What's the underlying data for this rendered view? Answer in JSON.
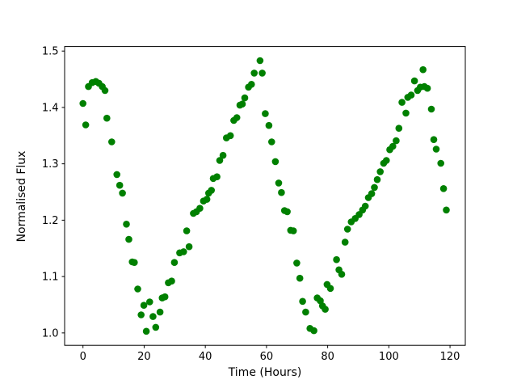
{
  "chart_data": {
    "type": "scatter",
    "title": "",
    "xlabel": "Time (Hours)",
    "ylabel": "Normalised Flux",
    "xlim": [
      -6,
      125
    ],
    "ylim": [
      0.978,
      1.508
    ],
    "x_ticks": [
      0,
      20,
      40,
      60,
      80,
      100,
      120
    ],
    "x_tick_labels": [
      "0",
      "20",
      "40",
      "60",
      "80",
      "100",
      "120"
    ],
    "y_ticks": [
      1.0,
      1.1,
      1.2,
      1.3,
      1.4,
      1.5
    ],
    "y_tick_labels": [
      "1.0",
      "1.1",
      "1.2",
      "1.3",
      "1.4",
      "1.5"
    ],
    "grid": false,
    "legend_position": "none",
    "marker_color": "#008000",
    "marker_shape": "circle",
    "marker_radius_px": 4.3,
    "series_name": "normalised-flux-light-curve",
    "points": [
      [
        0.0,
        1.407
      ],
      [
        0.9,
        1.369
      ],
      [
        1.8,
        1.437
      ],
      [
        3.0,
        1.444
      ],
      [
        4.2,
        1.446
      ],
      [
        5.2,
        1.443
      ],
      [
        6.3,
        1.437
      ],
      [
        7.2,
        1.43
      ],
      [
        7.8,
        1.381
      ],
      [
        9.4,
        1.339
      ],
      [
        11.1,
        1.281
      ],
      [
        12.0,
        1.262
      ],
      [
        12.9,
        1.248
      ],
      [
        14.2,
        1.193
      ],
      [
        15.0,
        1.166
      ],
      [
        16.1,
        1.126
      ],
      [
        16.8,
        1.125
      ],
      [
        17.9,
        1.078
      ],
      [
        19.0,
        1.032
      ],
      [
        19.9,
        1.049
      ],
      [
        20.7,
        1.003
      ],
      [
        21.8,
        1.055
      ],
      [
        22.9,
        1.029
      ],
      [
        23.8,
        1.01
      ],
      [
        25.2,
        1.037
      ],
      [
        25.9,
        1.062
      ],
      [
        26.8,
        1.064
      ],
      [
        27.9,
        1.089
      ],
      [
        29.0,
        1.092
      ],
      [
        29.9,
        1.125
      ],
      [
        31.6,
        1.142
      ],
      [
        32.9,
        1.144
      ],
      [
        33.9,
        1.181
      ],
      [
        34.7,
        1.153
      ],
      [
        36.1,
        1.212
      ],
      [
        37.1,
        1.215
      ],
      [
        38.2,
        1.221
      ],
      [
        39.4,
        1.234
      ],
      [
        40.5,
        1.237
      ],
      [
        41.1,
        1.248
      ],
      [
        42.0,
        1.253
      ],
      [
        42.6,
        1.274
      ],
      [
        43.8,
        1.277
      ],
      [
        44.7,
        1.306
      ],
      [
        45.8,
        1.315
      ],
      [
        46.9,
        1.346
      ],
      [
        48.2,
        1.35
      ],
      [
        49.3,
        1.377
      ],
      [
        50.3,
        1.382
      ],
      [
        51.3,
        1.404
      ],
      [
        52.1,
        1.406
      ],
      [
        52.9,
        1.417
      ],
      [
        54.1,
        1.436
      ],
      [
        55.1,
        1.441
      ],
      [
        56.0,
        1.461
      ],
      [
        57.9,
        1.483
      ],
      [
        58.6,
        1.461
      ],
      [
        59.6,
        1.389
      ],
      [
        60.8,
        1.368
      ],
      [
        61.7,
        1.339
      ],
      [
        62.9,
        1.304
      ],
      [
        64.0,
        1.266
      ],
      [
        64.9,
        1.249
      ],
      [
        65.9,
        1.217
      ],
      [
        66.8,
        1.215
      ],
      [
        67.9,
        1.182
      ],
      [
        68.8,
        1.181
      ],
      [
        69.9,
        1.124
      ],
      [
        70.9,
        1.097
      ],
      [
        71.8,
        1.056
      ],
      [
        72.8,
        1.037
      ],
      [
        74.2,
        1.008
      ],
      [
        75.5,
        1.004
      ],
      [
        76.6,
        1.062
      ],
      [
        77.6,
        1.057
      ],
      [
        78.3,
        1.048
      ],
      [
        79.2,
        1.042
      ],
      [
        79.8,
        1.086
      ],
      [
        80.9,
        1.079
      ],
      [
        82.9,
        1.13
      ],
      [
        83.7,
        1.112
      ],
      [
        84.6,
        1.104
      ],
      [
        85.7,
        1.161
      ],
      [
        86.5,
        1.184
      ],
      [
        87.7,
        1.197
      ],
      [
        89.0,
        1.203
      ],
      [
        90.3,
        1.21
      ],
      [
        91.4,
        1.218
      ],
      [
        92.3,
        1.225
      ],
      [
        93.3,
        1.24
      ],
      [
        94.4,
        1.247
      ],
      [
        95.3,
        1.258
      ],
      [
        96.2,
        1.272
      ],
      [
        97.2,
        1.286
      ],
      [
        98.3,
        1.301
      ],
      [
        99.2,
        1.306
      ],
      [
        100.3,
        1.325
      ],
      [
        101.3,
        1.331
      ],
      [
        102.4,
        1.341
      ],
      [
        103.3,
        1.363
      ],
      [
        104.3,
        1.409
      ],
      [
        105.6,
        1.39
      ],
      [
        106.2,
        1.418
      ],
      [
        107.3,
        1.422
      ],
      [
        108.4,
        1.447
      ],
      [
        109.4,
        1.43
      ],
      [
        110.3,
        1.436
      ],
      [
        111.2,
        1.467
      ],
      [
        111.6,
        1.437
      ],
      [
        112.6,
        1.434
      ],
      [
        113.9,
        1.397
      ],
      [
        114.7,
        1.343
      ],
      [
        115.5,
        1.326
      ],
      [
        117.0,
        1.301
      ],
      [
        117.9,
        1.256
      ],
      [
        118.8,
        1.218
      ]
    ]
  }
}
